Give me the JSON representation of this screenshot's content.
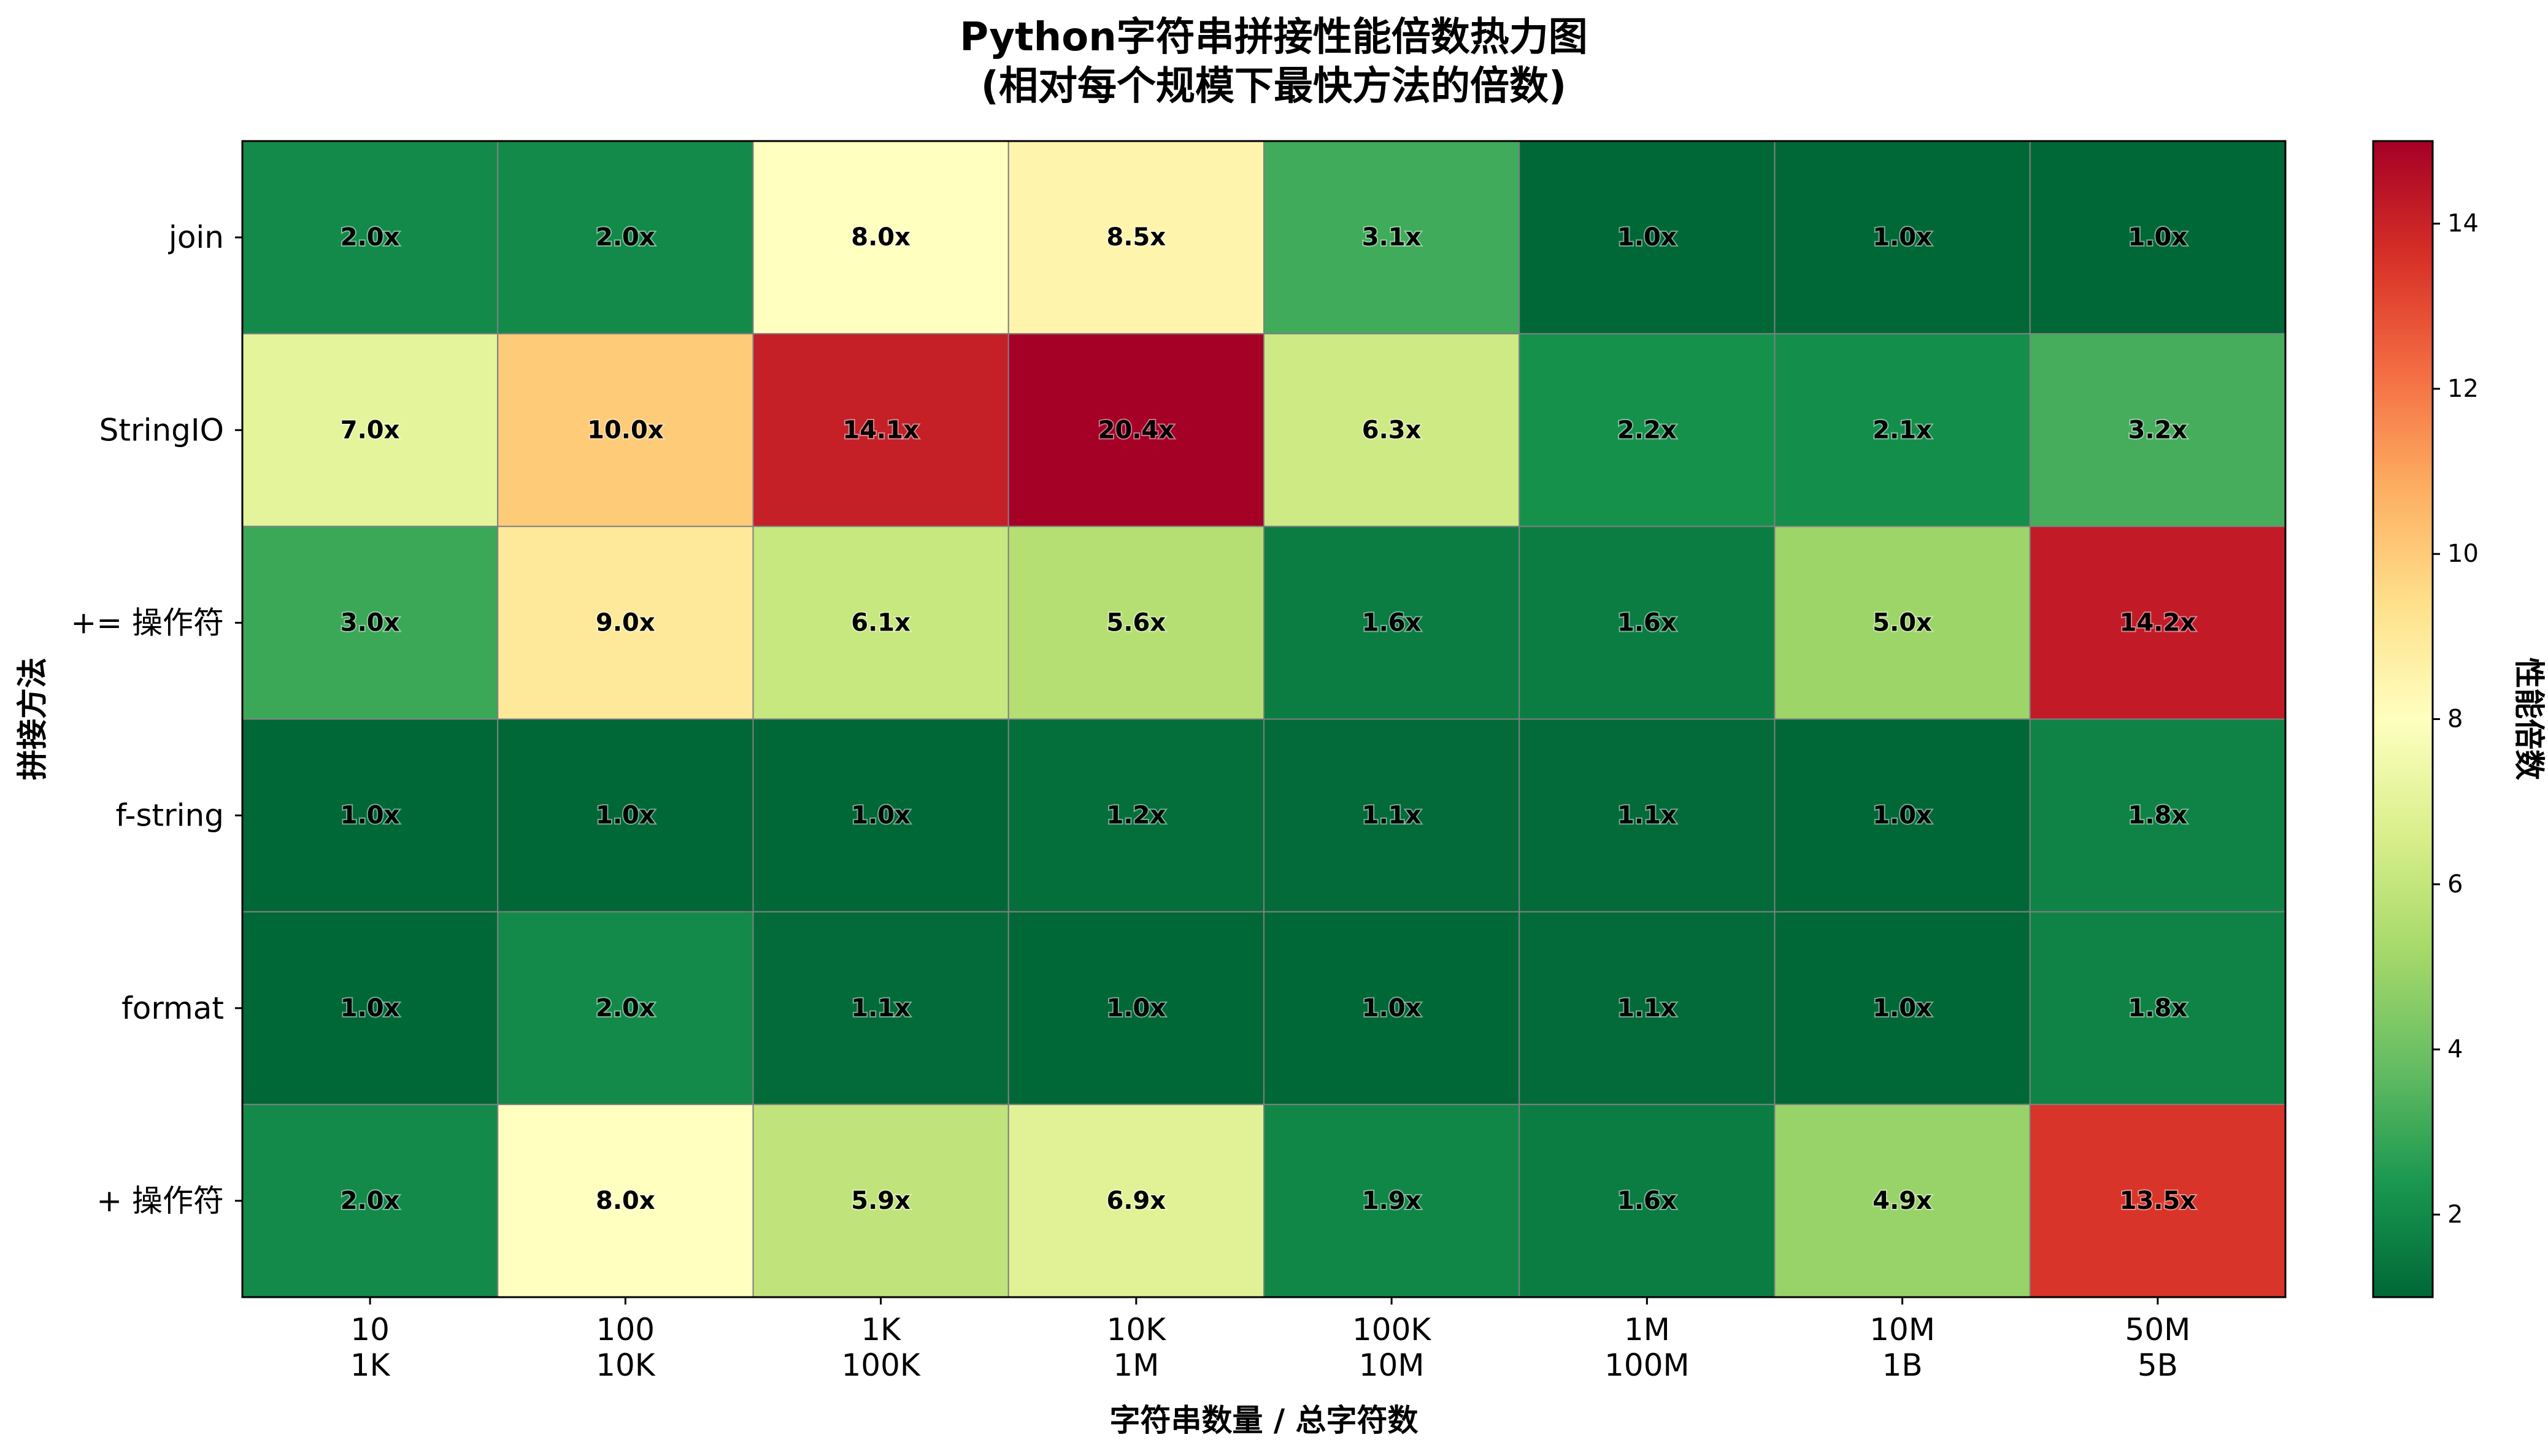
{
  "chart_data": {
    "type": "heatmap",
    "title_line1": "Python字符串拼接性能倍数热力图",
    "title_line2": "(相对每个规模下最快方法的倍数)",
    "xlabel": "字符串数量 / 总字符数",
    "ylabel": "拼接方法",
    "colorbar_label": "性能倍数",
    "x_categories": [
      [
        "10",
        "1K"
      ],
      [
        "100",
        "10K"
      ],
      [
        "1K",
        "100K"
      ],
      [
        "10K",
        "1M"
      ],
      [
        "100K",
        "10M"
      ],
      [
        "1M",
        "100M"
      ],
      [
        "10M",
        "1B"
      ],
      [
        "50M",
        "5B"
      ]
    ],
    "y_categories": [
      "join",
      "StringIO",
      "+= 操作符",
      "f-string",
      "format",
      "+ 操作符"
    ],
    "values": [
      [
        2.0,
        2.0,
        8.0,
        8.5,
        3.1,
        1.0,
        1.0,
        1.0
      ],
      [
        7.0,
        10.0,
        14.1,
        20.4,
        6.3,
        2.2,
        2.1,
        3.2
      ],
      [
        3.0,
        9.0,
        6.1,
        5.6,
        1.6,
        1.6,
        5.0,
        14.2
      ],
      [
        1.0,
        1.0,
        1.0,
        1.2,
        1.1,
        1.1,
        1.0,
        1.8
      ],
      [
        1.0,
        2.0,
        1.1,
        1.0,
        1.0,
        1.1,
        1.0,
        1.8
      ],
      [
        2.0,
        8.0,
        5.9,
        6.9,
        1.9,
        1.6,
        4.9,
        13.5
      ]
    ],
    "value_suffix": "x",
    "colormap": "RdYlGn_r",
    "vmin": 1,
    "vmax": 15,
    "colorbar_ticks": [
      2,
      4,
      6,
      8,
      10,
      12,
      14
    ]
  }
}
